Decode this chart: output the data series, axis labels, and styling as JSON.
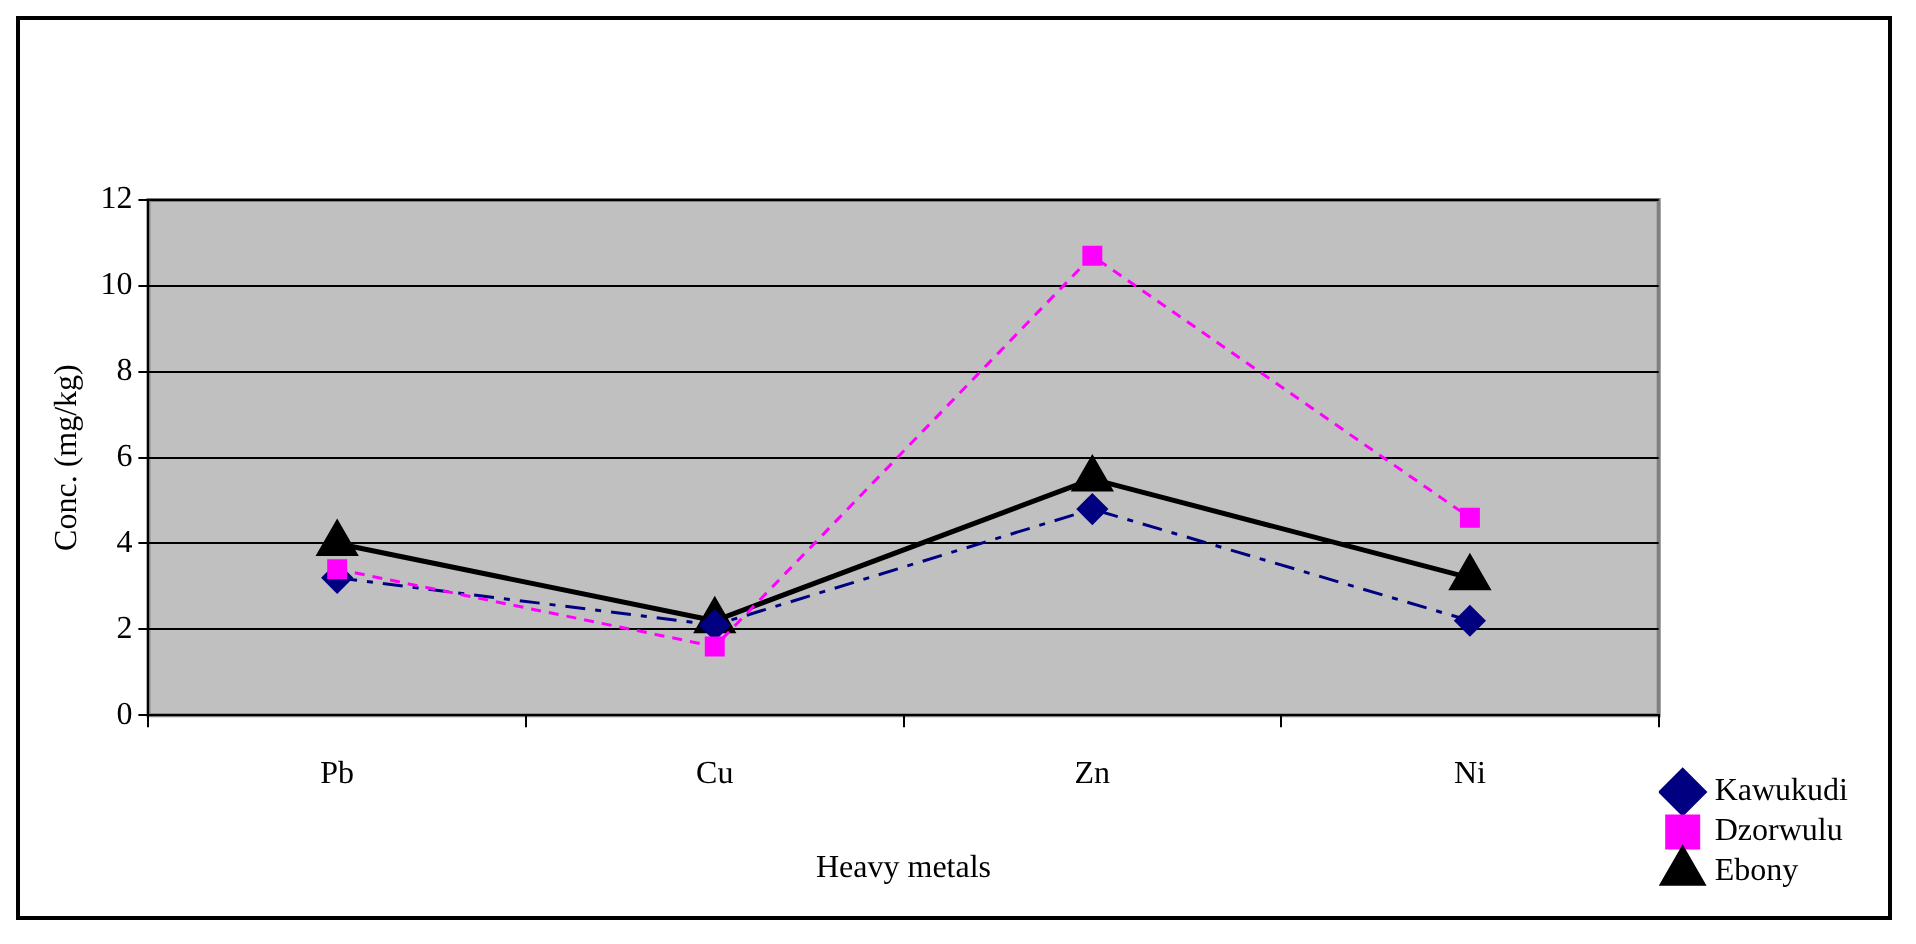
{
  "chart_data": {
    "type": "line",
    "xlabel": "Heavy metals",
    "ylabel": "Conc. (mg/kg)",
    "categories": [
      "Pb",
      "Cu",
      "Zn",
      "Ni"
    ],
    "ylim": [
      0,
      12
    ],
    "yticks": [
      0,
      2,
      4,
      6,
      8,
      10,
      12
    ],
    "grid": "y",
    "legend": "bottom right",
    "series": [
      {
        "name": "Kawukudi",
        "color": "#000080",
        "marker": "diamond",
        "line_style": "dashdot",
        "values": [
          3.2,
          2.1,
          4.8,
          2.2
        ]
      },
      {
        "name": "Dzorwulu",
        "color": "#ff00ff",
        "marker": "square",
        "line_style": "dashed",
        "values": [
          3.4,
          1.6,
          10.7,
          4.6
        ]
      },
      {
        "name": "Ebony",
        "color": "#000000",
        "marker": "triangle",
        "line_style": "solid",
        "values": [
          4.0,
          2.2,
          5.5,
          3.2
        ]
      }
    ]
  }
}
